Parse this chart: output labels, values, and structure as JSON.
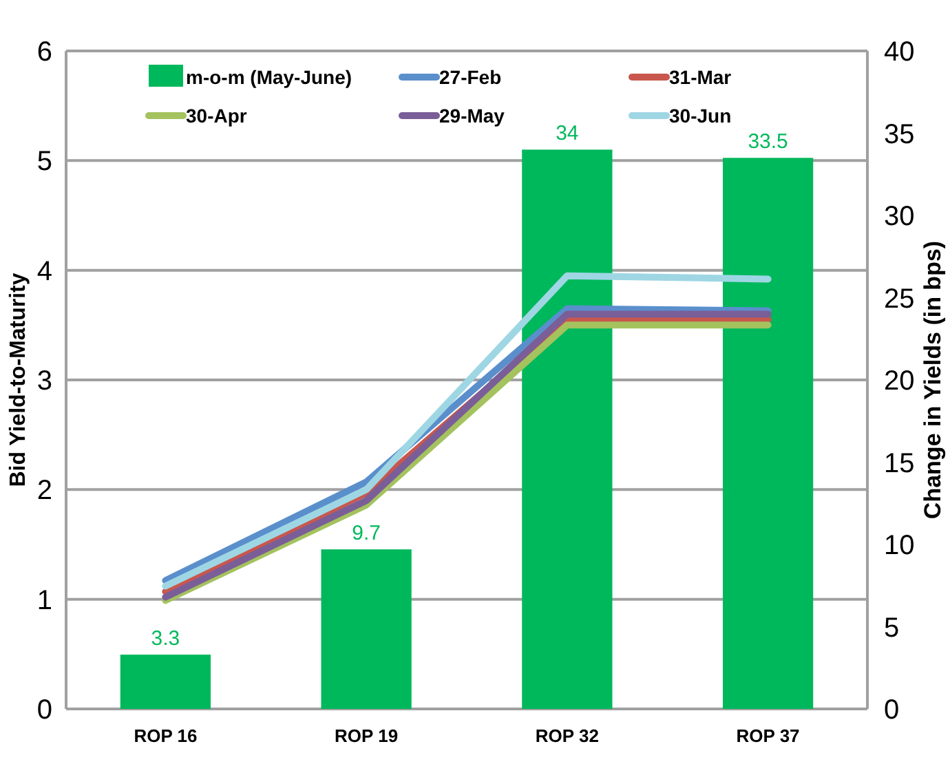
{
  "chart_data": {
    "type": "bar",
    "categories": [
      "ROP 16",
      "ROP 19",
      "ROP 32",
      "ROP 37"
    ],
    "ylabel": "Bid Yield-to-Maturity",
    "y2label": "Change in Yields (in bps)",
    "ylim": [
      0,
      6
    ],
    "yticks": [
      0,
      1,
      2,
      3,
      4,
      5,
      6
    ],
    "y2lim": [
      0,
      40
    ],
    "y2ticks": [
      0,
      5,
      10,
      15,
      20,
      25,
      30,
      35,
      40
    ],
    "grid": "y",
    "legend": "top",
    "series": [
      {
        "name": "m-o-m (May-June)",
        "axis": "y2",
        "color": "#00b85c",
        "values": [
          3.3,
          9.7,
          34,
          33.5
        ],
        "value_labels": [
          "3.3",
          "9.7",
          "34",
          "33.5"
        ]
      },
      {
        "name": "27-Feb",
        "type": "line",
        "color": "#5a8fcc",
        "values": [
          1.17,
          2.07,
          3.65,
          3.63
        ]
      },
      {
        "name": "31-Mar",
        "type": "line",
        "color": "#c9574d",
        "values": [
          1.07,
          1.97,
          3.55,
          3.55
        ]
      },
      {
        "name": "30-Apr",
        "type": "line",
        "color": "#a4c25e",
        "values": [
          0.99,
          1.86,
          3.5,
          3.5
        ]
      },
      {
        "name": "29-May",
        "type": "line",
        "color": "#7a5e98",
        "values": [
          1.02,
          1.9,
          3.6,
          3.6
        ]
      },
      {
        "name": "30-Jun",
        "type": "line",
        "color": "#9fd6e4",
        "values": [
          1.12,
          2.0,
          3.95,
          3.92
        ]
      }
    ]
  }
}
